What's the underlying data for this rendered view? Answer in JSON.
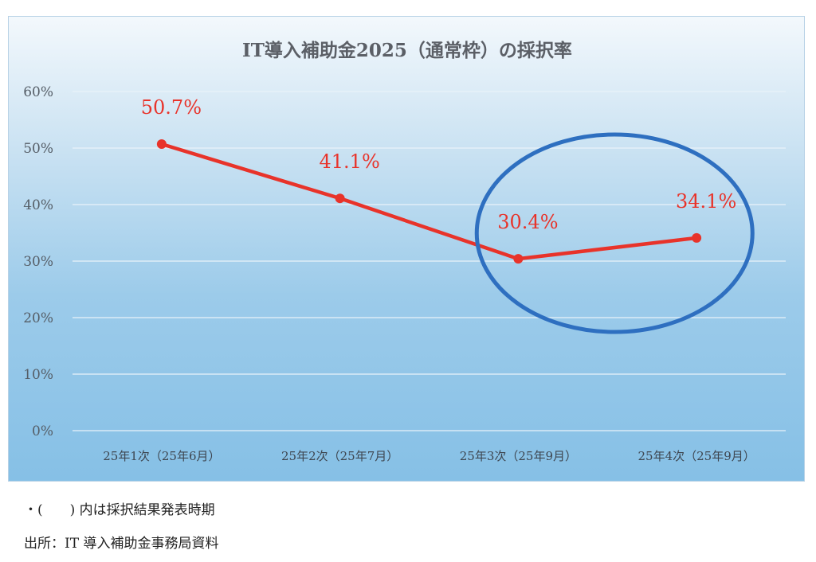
{
  "chart_data": {
    "type": "line",
    "title": "IT導入補助金2025（通常枠）の採択率",
    "categories": [
      "25年1次（25年6月）",
      "25年2次（25年7月）",
      "25年3次（25年9月）",
      "25年4次（25年9月）"
    ],
    "series": [
      {
        "values": [
          50.7,
          41.1,
          30.4,
          34.1
        ],
        "color": "#e8332a"
      }
    ],
    "data_labels": [
      "50.7%",
      "41.1%",
      "30.4%",
      "34.1%"
    ],
    "ylim": [
      0,
      60
    ],
    "yticks": [
      0,
      10,
      20,
      30,
      40,
      50,
      60
    ],
    "ytick_labels": [
      "0%",
      "10%",
      "20%",
      "30%",
      "40%",
      "50%",
      "60%"
    ],
    "xlabel": "",
    "ylabel": "",
    "grid": true,
    "legend": "none",
    "highlight": {
      "categories": [
        "25年3次（25年9月）",
        "25年4次（25年9月）"
      ],
      "shape": "ellipse",
      "color": "#2e6fc0"
    }
  },
  "notes": {
    "timing_note": "・(　　) 内は採択結果発表時期",
    "source": "出所：IT 導入補助金事務局資料"
  }
}
